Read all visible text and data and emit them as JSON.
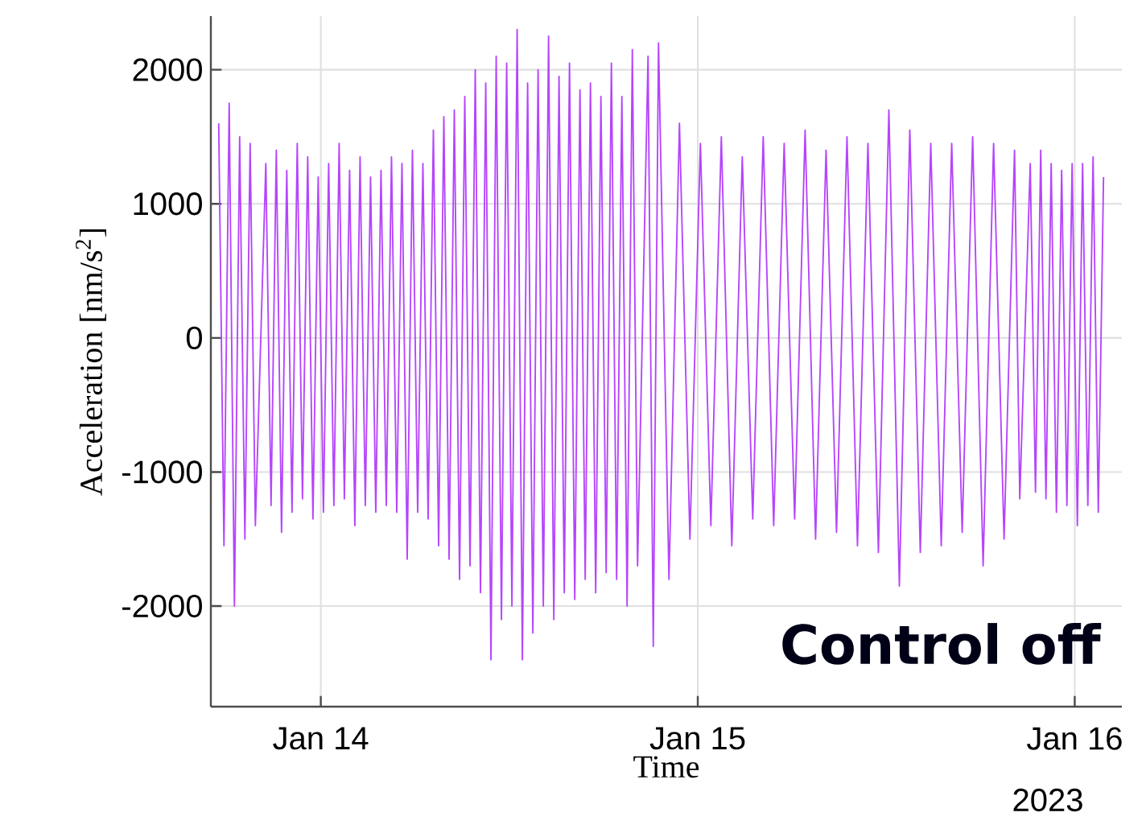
{
  "chart_data": {
    "type": "line",
    "xlabel": "Time",
    "ylabel": "Acceleration [nm/s$^{2}$]",
    "annotations": [
      "Control off",
      "2023"
    ],
    "color": "#b545fc",
    "grid": true,
    "xlim": [
      "2023-01-13T17:00",
      "2023-01-16T03:00"
    ],
    "xticks": [
      {
        "value": "2023-01-14",
        "label": "Jan 14"
      },
      {
        "value": "2023-01-15",
        "label": "Jan 15"
      },
      {
        "value": "2023-01-16",
        "label": "Jan 16"
      }
    ],
    "ylim": [
      -2750,
      2400
    ],
    "yticks": [
      -2000,
      -1000,
      0,
      1000,
      2000
    ],
    "x": [
      "2023-01-13T17:30",
      "2023-01-13T17:50",
      "2023-01-13T18:10",
      "2023-01-13T18:30",
      "2023-01-13T18:50",
      "2023-01-13T19:10",
      "2023-01-13T19:30",
      "2023-01-13T19:50",
      "2023-01-13T20:30",
      "2023-01-13T20:50",
      "2023-01-13T21:10",
      "2023-01-13T21:30",
      "2023-01-13T21:50",
      "2023-01-13T22:10",
      "2023-01-13T22:30",
      "2023-01-13T22:50",
      "2023-01-13T23:10",
      "2023-01-13T23:30",
      "2023-01-13T23:50",
      "2023-01-14T00:10",
      "2023-01-14T00:30",
      "2023-01-14T00:50",
      "2023-01-14T01:10",
      "2023-01-14T01:30",
      "2023-01-14T01:50",
      "2023-01-14T02:10",
      "2023-01-14T02:30",
      "2023-01-14T02:50",
      "2023-01-14T03:10",
      "2023-01-14T03:30",
      "2023-01-14T03:50",
      "2023-01-14T04:10",
      "2023-01-14T04:30",
      "2023-01-14T04:50",
      "2023-01-14T05:10",
      "2023-01-14T05:30",
      "2023-01-14T05:50",
      "2023-01-14T06:10",
      "2023-01-14T06:30",
      "2023-01-14T06:50",
      "2023-01-14T07:10",
      "2023-01-14T07:30",
      "2023-01-14T07:50",
      "2023-01-14T08:10",
      "2023-01-14T08:30",
      "2023-01-14T08:50",
      "2023-01-14T09:10",
      "2023-01-14T09:30",
      "2023-01-14T09:50",
      "2023-01-14T10:10",
      "2023-01-14T10:30",
      "2023-01-14T10:50",
      "2023-01-14T11:10",
      "2023-01-14T11:30",
      "2023-01-14T11:50",
      "2023-01-14T12:10",
      "2023-01-14T12:30",
      "2023-01-14T12:50",
      "2023-01-14T13:10",
      "2023-01-14T13:30",
      "2023-01-14T13:50",
      "2023-01-14T14:10",
      "2023-01-14T14:30",
      "2023-01-14T14:50",
      "2023-01-14T15:10",
      "2023-01-14T15:30",
      "2023-01-14T15:50",
      "2023-01-14T16:10",
      "2023-01-14T16:30",
      "2023-01-14T16:50",
      "2023-01-14T17:10",
      "2023-01-14T17:30",
      "2023-01-14T17:50",
      "2023-01-14T18:10",
      "2023-01-14T18:30",
      "2023-01-14T18:50",
      "2023-01-14T19:10",
      "2023-01-14T19:30",
      "2023-01-14T19:50",
      "2023-01-14T20:10",
      "2023-01-14T20:50",
      "2023-01-14T21:10",
      "2023-01-14T21:30",
      "2023-01-14T22:10",
      "2023-01-14T22:50",
      "2023-01-14T23:30",
      "2023-01-15T00:10",
      "2023-01-15T00:50",
      "2023-01-15T01:30",
      "2023-01-15T02:10",
      "2023-01-15T02:50",
      "2023-01-15T03:30",
      "2023-01-15T04:10",
      "2023-01-15T04:50",
      "2023-01-15T05:30",
      "2023-01-15T06:10",
      "2023-01-15T06:50",
      "2023-01-15T07:30",
      "2023-01-15T08:10",
      "2023-01-15T08:50",
      "2023-01-15T09:30",
      "2023-01-15T10:10",
      "2023-01-15T10:50",
      "2023-01-15T11:30",
      "2023-01-15T12:10",
      "2023-01-15T12:50",
      "2023-01-15T13:30",
      "2023-01-15T14:10",
      "2023-01-15T14:50",
      "2023-01-15T15:30",
      "2023-01-15T16:10",
      "2023-01-15T16:50",
      "2023-01-15T17:30",
      "2023-01-15T18:10",
      "2023-01-15T18:50",
      "2023-01-15T19:30",
      "2023-01-15T20:10",
      "2023-01-15T20:30",
      "2023-01-15T21:10",
      "2023-01-15T21:30",
      "2023-01-15T21:50",
      "2023-01-15T22:10",
      "2023-01-15T22:30",
      "2023-01-15T22:50",
      "2023-01-15T23:10",
      "2023-01-15T23:30",
      "2023-01-15T23:50",
      "2023-01-16T00:10",
      "2023-01-16T00:30",
      "2023-01-16T00:50",
      "2023-01-16T01:10",
      "2023-01-16T01:30",
      "2023-01-16T01:50"
    ],
    "values": [
      1600,
      -1550,
      1750,
      -2000,
      1500,
      -1500,
      1450,
      -1400,
      1300,
      -1250,
      1400,
      -1450,
      1250,
      -1300,
      1450,
      -1200,
      1350,
      -1350,
      1200,
      -1300,
      1300,
      -1250,
      1450,
      -1200,
      1250,
      -1400,
      1350,
      -1250,
      1200,
      -1300,
      1250,
      -1250,
      1350,
      -1300,
      1300,
      -1650,
      1400,
      -1300,
      1300,
      -1350,
      1550,
      -1550,
      1650,
      -1650,
      1700,
      -1800,
      1800,
      -1700,
      2000,
      -1900,
      1900,
      -2400,
      2100,
      -2100,
      2050,
      -2000,
      2300,
      -2400,
      1900,
      -2200,
      2000,
      -2000,
      2250,
      -2100,
      1950,
      -1900,
      2050,
      -1950,
      1850,
      -1800,
      1900,
      -1900,
      1800,
      -1750,
      2050,
      -1800,
      1800,
      -2000,
      2150,
      -1700,
      2100,
      -2300,
      2200,
      -1800,
      1600,
      -1500,
      1450,
      -1400,
      1500,
      -1550,
      1350,
      -1350,
      1500,
      -1400,
      1450,
      -1350,
      1550,
      -1500,
      1400,
      -1450,
      1500,
      -1550,
      1450,
      -1600,
      1700,
      -1850,
      1550,
      -1600,
      1450,
      -1550,
      1450,
      -1450,
      1500,
      -1700,
      1450,
      -1500,
      1400,
      -1200,
      1300,
      -1150,
      1400,
      -1200,
      1300,
      -1300,
      1250,
      -1250,
      1300,
      -1400,
      1300,
      -1250,
      1350,
      -1300,
      1200
    ]
  }
}
